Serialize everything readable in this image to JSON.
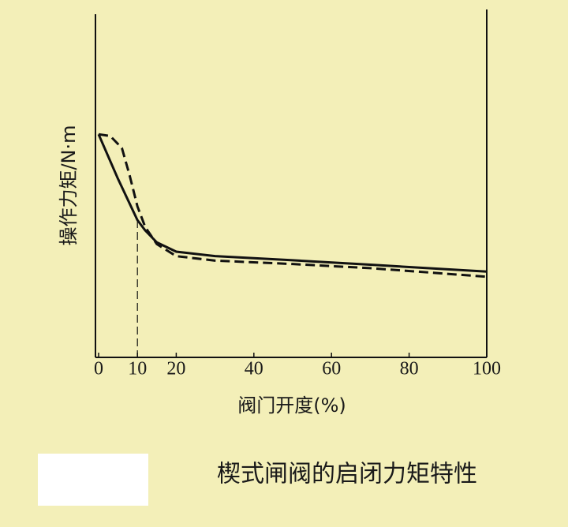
{
  "chart_data": {
    "type": "line",
    "caption": "楔式闸阀的启闭力矩特性",
    "x_label": "阀门开度(%)",
    "y_label": "操作力矩/N·m",
    "xlim": [
      0,
      100
    ],
    "ylim": [
      0,
      100
    ],
    "xticks": [
      0,
      10,
      20,
      40,
      60,
      80,
      100
    ],
    "series": [
      {
        "color": "#111111",
        "dash": false,
        "x": [
          0,
          5,
          10,
          12,
          15,
          20,
          30,
          50,
          70,
          100
        ],
        "values": [
          65,
          52,
          40,
          37,
          33.5,
          30.8,
          29.5,
          28.3,
          27,
          25
        ]
      },
      {
        "color": "#111111",
        "dash": true,
        "x": [
          0,
          3,
          6,
          8,
          10,
          12,
          15,
          20,
          30,
          50,
          70,
          100
        ],
        "values": [
          65,
          64.5,
          61,
          53,
          44,
          38,
          33,
          29.5,
          28.2,
          27.2,
          26,
          23.5
        ]
      }
    ]
  }
}
